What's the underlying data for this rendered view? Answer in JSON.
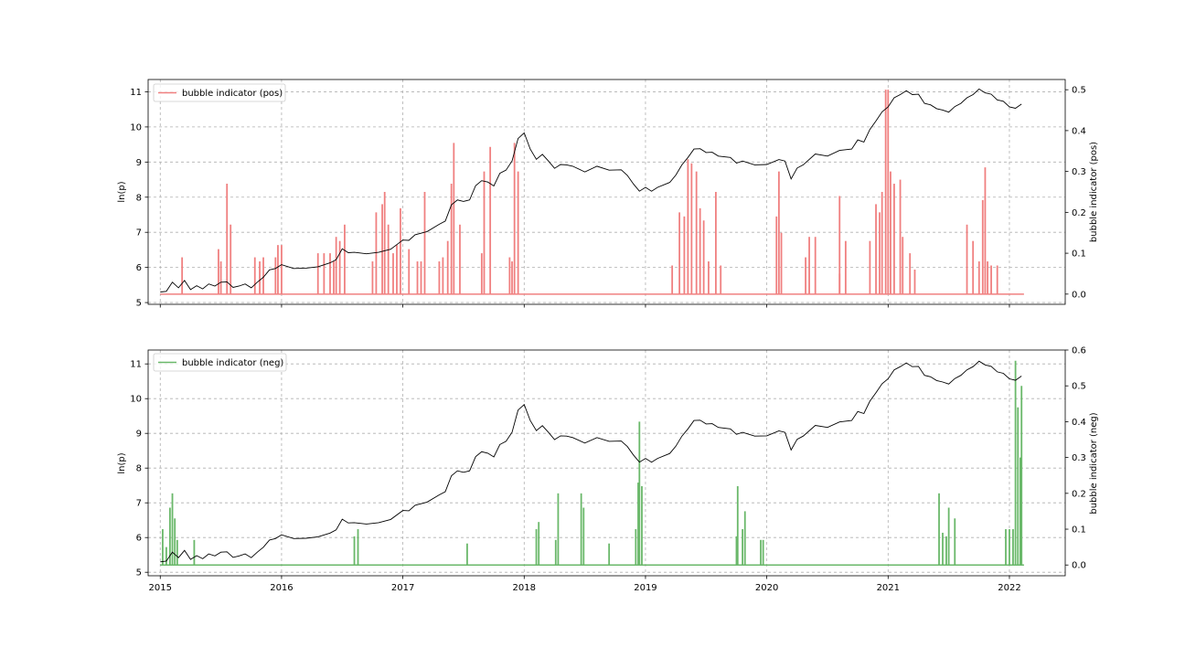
{
  "chart_data": [
    {
      "type": "line",
      "panel": "top",
      "xlabel": "",
      "ylabel": "ln(p)",
      "ylabel_right": "bubble indicator (pos)",
      "xlim": [
        2014.9,
        2022.46
      ],
      "ylim": [
        4.95,
        11.35
      ],
      "ylim_right": [
        -0.025,
        0.525
      ],
      "yticks": [
        5,
        6,
        7,
        8,
        9,
        10,
        11
      ],
      "yticks_right": [
        0.0,
        0.1,
        0.2,
        0.3,
        0.4,
        0.5
      ],
      "ytick_labels_right": [
        "0.0",
        "0.1",
        "0.2",
        "0.3",
        "0.4",
        "0.5"
      ],
      "x_ticks_shown": false,
      "grid": true,
      "legend": {
        "position": "upper-left",
        "entries": [
          {
            "label": "bubble indicator (pos)",
            "color": "#f08080"
          }
        ]
      },
      "series": [
        {
          "name": "",
          "axis": "left",
          "color": "#000000",
          "x": [
            2015.0,
            2015.05,
            2015.1,
            2015.15,
            2015.2,
            2015.25,
            2015.3,
            2015.35,
            2015.4,
            2015.45,
            2015.5,
            2015.55,
            2015.6,
            2015.65,
            2015.7,
            2015.75,
            2015.8,
            2015.85,
            2015.9,
            2015.95,
            2016.0,
            2016.1,
            2016.2,
            2016.3,
            2016.4,
            2016.45,
            2016.5,
            2016.55,
            2016.6,
            2016.7,
            2016.8,
            2016.9,
            2017.0,
            2017.05,
            2017.1,
            2017.2,
            2017.3,
            2017.35,
            2017.4,
            2017.45,
            2017.5,
            2017.55,
            2017.6,
            2017.65,
            2017.7,
            2017.75,
            2017.8,
            2017.85,
            2017.9,
            2017.95,
            2018.0,
            2018.05,
            2018.1,
            2018.15,
            2018.2,
            2018.25,
            2018.3,
            2018.35,
            2018.4,
            2018.5,
            2018.6,
            2018.7,
            2018.8,
            2018.85,
            2018.9,
            2018.95,
            2019.0,
            2019.05,
            2019.1,
            2019.2,
            2019.25,
            2019.3,
            2019.35,
            2019.4,
            2019.45,
            2019.5,
            2019.55,
            2019.6,
            2019.7,
            2019.75,
            2019.8,
            2019.9,
            2020.0,
            2020.1,
            2020.15,
            2020.2,
            2020.25,
            2020.3,
            2020.4,
            2020.5,
            2020.6,
            2020.7,
            2020.75,
            2020.8,
            2020.85,
            2020.9,
            2020.95,
            2021.0,
            2021.05,
            2021.1,
            2021.15,
            2021.2,
            2021.25,
            2021.3,
            2021.35,
            2021.4,
            2021.45,
            2021.5,
            2021.55,
            2021.6,
            2021.65,
            2021.7,
            2021.75,
            2021.8,
            2021.85,
            2021.9,
            2021.95,
            2022.0,
            2022.05,
            2022.1
          ],
          "values": [
            5.3,
            5.35,
            5.55,
            5.45,
            5.6,
            5.4,
            5.45,
            5.42,
            5.5,
            5.5,
            5.55,
            5.62,
            5.4,
            5.5,
            5.5,
            5.45,
            5.55,
            5.75,
            5.9,
            6.0,
            6.05,
            6.0,
            5.95,
            6.05,
            6.1,
            6.25,
            6.5,
            6.45,
            6.4,
            6.42,
            6.4,
            6.55,
            6.75,
            6.8,
            6.9,
            7.05,
            7.2,
            7.35,
            7.75,
            7.95,
            7.85,
            7.95,
            8.3,
            8.5,
            8.4,
            8.35,
            8.65,
            8.8,
            9.0,
            9.7,
            9.8,
            9.4,
            9.05,
            9.25,
            9.0,
            8.85,
            8.9,
            8.95,
            8.85,
            8.75,
            8.85,
            8.8,
            8.75,
            8.65,
            8.35,
            8.2,
            8.25,
            8.2,
            8.25,
            8.45,
            8.6,
            8.95,
            9.1,
            9.4,
            9.35,
            9.3,
            9.25,
            9.2,
            9.1,
            9.0,
            9.0,
            8.95,
            8.9,
            9.1,
            9.0,
            8.55,
            8.8,
            8.95,
            9.2,
            9.2,
            9.3,
            9.4,
            9.6,
            9.6,
            9.9,
            10.2,
            10.4,
            10.6,
            10.8,
            10.95,
            11.0,
            10.95,
            10.9,
            10.7,
            10.6,
            10.55,
            10.45,
            10.45,
            10.55,
            10.7,
            10.8,
            10.95,
            11.05,
            11.0,
            10.9,
            10.8,
            10.7,
            10.6,
            10.5,
            10.65
          ]
        },
        {
          "name": "bubble indicator (pos)",
          "axis": "right",
          "color": "#f08080",
          "spikes": [
            [
              2015.18,
              0.09
            ],
            [
              2015.48,
              0.11
            ],
            [
              2015.5,
              0.08
            ],
            [
              2015.55,
              0.27
            ],
            [
              2015.58,
              0.17
            ],
            [
              2015.78,
              0.09
            ],
            [
              2015.82,
              0.08
            ],
            [
              2015.85,
              0.09
            ],
            [
              2015.95,
              0.09
            ],
            [
              2015.97,
              0.12
            ],
            [
              2016.0,
              0.12
            ],
            [
              2016.3,
              0.1
            ],
            [
              2016.35,
              0.1
            ],
            [
              2016.4,
              0.1
            ],
            [
              2016.43,
              0.08
            ],
            [
              2016.45,
              0.14
            ],
            [
              2016.48,
              0.13
            ],
            [
              2016.52,
              0.17
            ],
            [
              2016.75,
              0.08
            ],
            [
              2016.78,
              0.2
            ],
            [
              2016.83,
              0.22
            ],
            [
              2016.85,
              0.25
            ],
            [
              2016.88,
              0.17
            ],
            [
              2016.92,
              0.1
            ],
            [
              2016.95,
              0.12
            ],
            [
              2016.98,
              0.21
            ],
            [
              2017.05,
              0.11
            ],
            [
              2017.12,
              0.08
            ],
            [
              2017.15,
              0.08
            ],
            [
              2017.18,
              0.25
            ],
            [
              2017.3,
              0.08
            ],
            [
              2017.33,
              0.09
            ],
            [
              2017.37,
              0.13
            ],
            [
              2017.4,
              0.27
            ],
            [
              2017.42,
              0.37
            ],
            [
              2017.47,
              0.17
            ],
            [
              2017.65,
              0.1
            ],
            [
              2017.67,
              0.3
            ],
            [
              2017.72,
              0.36
            ],
            [
              2017.88,
              0.09
            ],
            [
              2017.9,
              0.08
            ],
            [
              2017.92,
              0.37
            ],
            [
              2017.95,
              0.3
            ],
            [
              2019.22,
              0.07
            ],
            [
              2019.28,
              0.2
            ],
            [
              2019.32,
              0.19
            ],
            [
              2019.35,
              0.33
            ],
            [
              2019.38,
              0.32
            ],
            [
              2019.42,
              0.3
            ],
            [
              2019.45,
              0.21
            ],
            [
              2019.48,
              0.18
            ],
            [
              2019.52,
              0.08
            ],
            [
              2019.58,
              0.25
            ],
            [
              2019.62,
              0.07
            ],
            [
              2020.08,
              0.19
            ],
            [
              2020.1,
              0.3
            ],
            [
              2020.12,
              0.15
            ],
            [
              2020.32,
              0.09
            ],
            [
              2020.35,
              0.14
            ],
            [
              2020.4,
              0.14
            ],
            [
              2020.6,
              0.05
            ],
            [
              2020.6,
              0.24
            ],
            [
              2020.65,
              0.13
            ],
            [
              2020.85,
              0.13
            ],
            [
              2020.9,
              0.22
            ],
            [
              2020.93,
              0.2
            ],
            [
              2020.95,
              0.25
            ],
            [
              2020.98,
              0.5
            ],
            [
              2021.0,
              0.5
            ],
            [
              2021.02,
              0.3
            ],
            [
              2021.05,
              0.27
            ],
            [
              2021.1,
              0.28
            ],
            [
              2021.12,
              0.14
            ],
            [
              2021.18,
              0.1
            ],
            [
              2021.22,
              0.06
            ],
            [
              2021.65,
              0.17
            ],
            [
              2021.7,
              0.13
            ],
            [
              2021.75,
              0.08
            ],
            [
              2021.78,
              0.23
            ],
            [
              2021.8,
              0.31
            ],
            [
              2021.82,
              0.08
            ],
            [
              2021.85,
              0.07
            ],
            [
              2021.9,
              0.07
            ]
          ]
        }
      ]
    },
    {
      "type": "line",
      "panel": "bottom",
      "xlabel": "",
      "ylabel": "ln(p)",
      "ylabel_right": "bubble indicator (neg)",
      "xlim": [
        2014.9,
        2022.46
      ],
      "ylim": [
        4.9,
        11.4
      ],
      "ylim_right": [
        -0.03,
        0.6
      ],
      "yticks": [
        5,
        6,
        7,
        8,
        9,
        10,
        11
      ],
      "yticks_right": [
        0.0,
        0.1,
        0.2,
        0.3,
        0.4,
        0.5,
        0.6
      ],
      "ytick_labels_right": [
        "0.0",
        "0.1",
        "0.2",
        "0.3",
        "0.4",
        "0.5",
        "0.6"
      ],
      "xticks": [
        2015,
        2016,
        2017,
        2018,
        2019,
        2020,
        2021,
        2022
      ],
      "xtick_labels": [
        "2015",
        "2016",
        "2017",
        "2018",
        "2019",
        "2020",
        "2021",
        "2022"
      ],
      "grid": true,
      "legend": {
        "position": "upper-left",
        "entries": [
          {
            "label": "bubble indicator (neg)",
            "color": "#6ab86a"
          }
        ]
      },
      "series": [
        {
          "name": "",
          "axis": "left",
          "color": "#000000",
          "x": "same-as-top",
          "values": "same-as-top"
        },
        {
          "name": "bubble indicator (neg)",
          "axis": "right",
          "color": "#6ab86a",
          "spikes": [
            [
              2015.02,
              0.1
            ],
            [
              2015.05,
              0.05
            ],
            [
              2015.08,
              0.16
            ],
            [
              2015.1,
              0.2
            ],
            [
              2015.12,
              0.13
            ],
            [
              2015.14,
              0.07
            ],
            [
              2015.28,
              0.07
            ],
            [
              2016.6,
              0.08
            ],
            [
              2016.63,
              0.1
            ],
            [
              2017.53,
              0.06
            ],
            [
              2018.1,
              0.1
            ],
            [
              2018.12,
              0.12
            ],
            [
              2018.26,
              0.07
            ],
            [
              2018.28,
              0.2
            ],
            [
              2018.47,
              0.2
            ],
            [
              2018.49,
              0.16
            ],
            [
              2018.7,
              0.06
            ],
            [
              2018.92,
              0.1
            ],
            [
              2018.94,
              0.23
            ],
            [
              2018.95,
              0.4
            ],
            [
              2018.97,
              0.22
            ],
            [
              2019.75,
              0.08
            ],
            [
              2019.76,
              0.22
            ],
            [
              2019.8,
              0.1
            ],
            [
              2019.82,
              0.15
            ],
            [
              2019.95,
              0.07
            ],
            [
              2019.97,
              0.07
            ],
            [
              2021.42,
              0.2
            ],
            [
              2021.45,
              0.09
            ],
            [
              2021.48,
              0.08
            ],
            [
              2021.5,
              0.16
            ],
            [
              2021.55,
              0.13
            ],
            [
              2021.97,
              0.1
            ],
            [
              2022.0,
              0.1
            ],
            [
              2022.03,
              0.1
            ],
            [
              2022.05,
              0.57
            ],
            [
              2022.07,
              0.44
            ],
            [
              2022.09,
              0.3
            ],
            [
              2022.1,
              0.5
            ]
          ]
        }
      ]
    }
  ]
}
